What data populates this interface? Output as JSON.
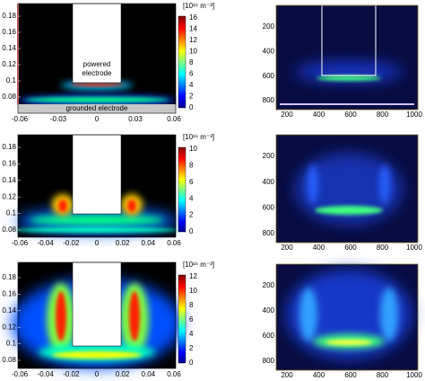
{
  "simulation_panels": [
    {
      "colorbar_unit": "[10¹⁶ m⁻³]",
      "colorbar_ticks": [
        "0",
        "2",
        "4",
        "6",
        "8",
        "10",
        "12",
        "14",
        "16"
      ],
      "xticks": [
        "-0.06",
        "-0.03",
        "0",
        "0.03",
        "0.06"
      ],
      "yticks": [
        "0.18",
        "0.16",
        "0.14",
        "0.12",
        "0.1",
        "0.08"
      ],
      "powered_label": "powered electrode",
      "grounded_label": "grounded electrode"
    },
    {
      "colorbar_unit": "[10¹⁶ m⁻³]",
      "colorbar_ticks": [
        "0",
        "2",
        "4",
        "6",
        "8",
        "10"
      ],
      "xticks": [
        "-0.06",
        "-0.04",
        "-0.02",
        "0",
        "0.02",
        "0.04",
        "0.06"
      ],
      "yticks": [
        "0.18",
        "0.16",
        "0.14",
        "0.12",
        "0.1",
        "0.08"
      ]
    },
    {
      "colorbar_unit": "[10¹⁶ m⁻³]",
      "colorbar_ticks": [
        "0",
        "2",
        "4",
        "6",
        "8",
        "10",
        "12"
      ],
      "xticks": [
        "-0.06",
        "-0.04",
        "-0.02",
        "0",
        "0.02",
        "0.04",
        "0.06"
      ],
      "yticks": [
        "0.18",
        "0.16",
        "0.14",
        "0.12",
        "0.1",
        "0.08"
      ]
    }
  ],
  "experiment_panels": [
    {
      "xticks": [
        "200",
        "400",
        "600",
        "800",
        "1000"
      ],
      "yticks": [
        "200",
        "400",
        "600",
        "800"
      ]
    },
    {
      "xticks": [
        "200",
        "400",
        "600",
        "800",
        "1000"
      ],
      "yticks": [
        "200",
        "400",
        "600",
        "800"
      ]
    },
    {
      "xticks": [
        "200",
        "400",
        "600",
        "800",
        "1000"
      ],
      "yticks": [
        "200",
        "400",
        "600",
        "800"
      ]
    }
  ]
}
